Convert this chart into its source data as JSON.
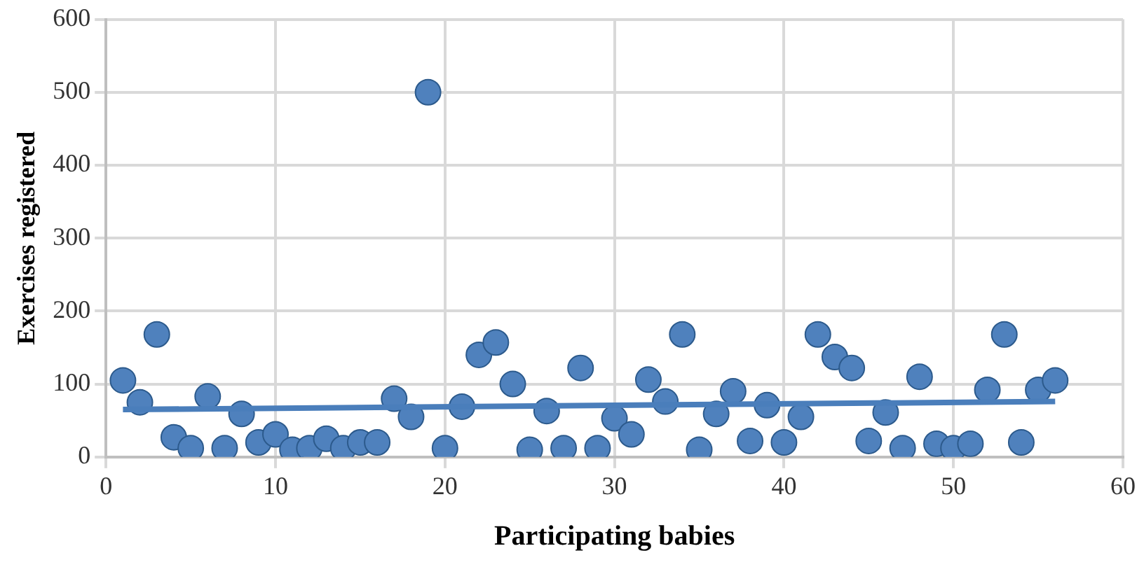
{
  "chart_data": {
    "type": "scatter",
    "xlabel": "Participating babies",
    "ylabel": "Exercises registered",
    "xlim": [
      0,
      60
    ],
    "xticks": [
      0,
      10,
      20,
      30,
      40,
      50,
      60
    ],
    "ylim": [
      0,
      600
    ],
    "yticks": [
      0,
      100,
      200,
      300,
      400,
      500,
      600
    ],
    "grid": true,
    "series": [
      {
        "type": "scatter",
        "marker": "circle",
        "color": "#4f81bd",
        "x": [
          1,
          2,
          3,
          4,
          5,
          6,
          7,
          8,
          9,
          10,
          11,
          12,
          13,
          14,
          15,
          16,
          17,
          18,
          19,
          20,
          21,
          22,
          23,
          24,
          25,
          26,
          27,
          28,
          29,
          30,
          31,
          32,
          33,
          34,
          35,
          36,
          37,
          38,
          39,
          40,
          41,
          42,
          43,
          44,
          45,
          46,
          47,
          48,
          49,
          50,
          51,
          52,
          53,
          54,
          55,
          56
        ],
        "values": [
          105,
          75,
          168,
          27,
          12,
          83,
          12,
          59,
          20,
          31,
          10,
          12,
          25,
          12,
          20,
          20,
          80,
          55,
          500,
          12,
          69,
          140,
          157,
          100,
          10,
          63,
          12,
          122,
          12,
          53,
          31,
          106,
          76,
          168,
          10,
          59,
          90,
          22,
          71,
          20,
          55,
          168,
          137,
          122,
          22,
          61,
          12,
          110,
          18,
          12,
          18,
          92,
          168,
          20,
          92,
          105
        ]
      },
      {
        "type": "line",
        "color": "#4a7ebb",
        "x": [
          1,
          56
        ],
        "values": [
          65,
          76
        ]
      }
    ]
  }
}
